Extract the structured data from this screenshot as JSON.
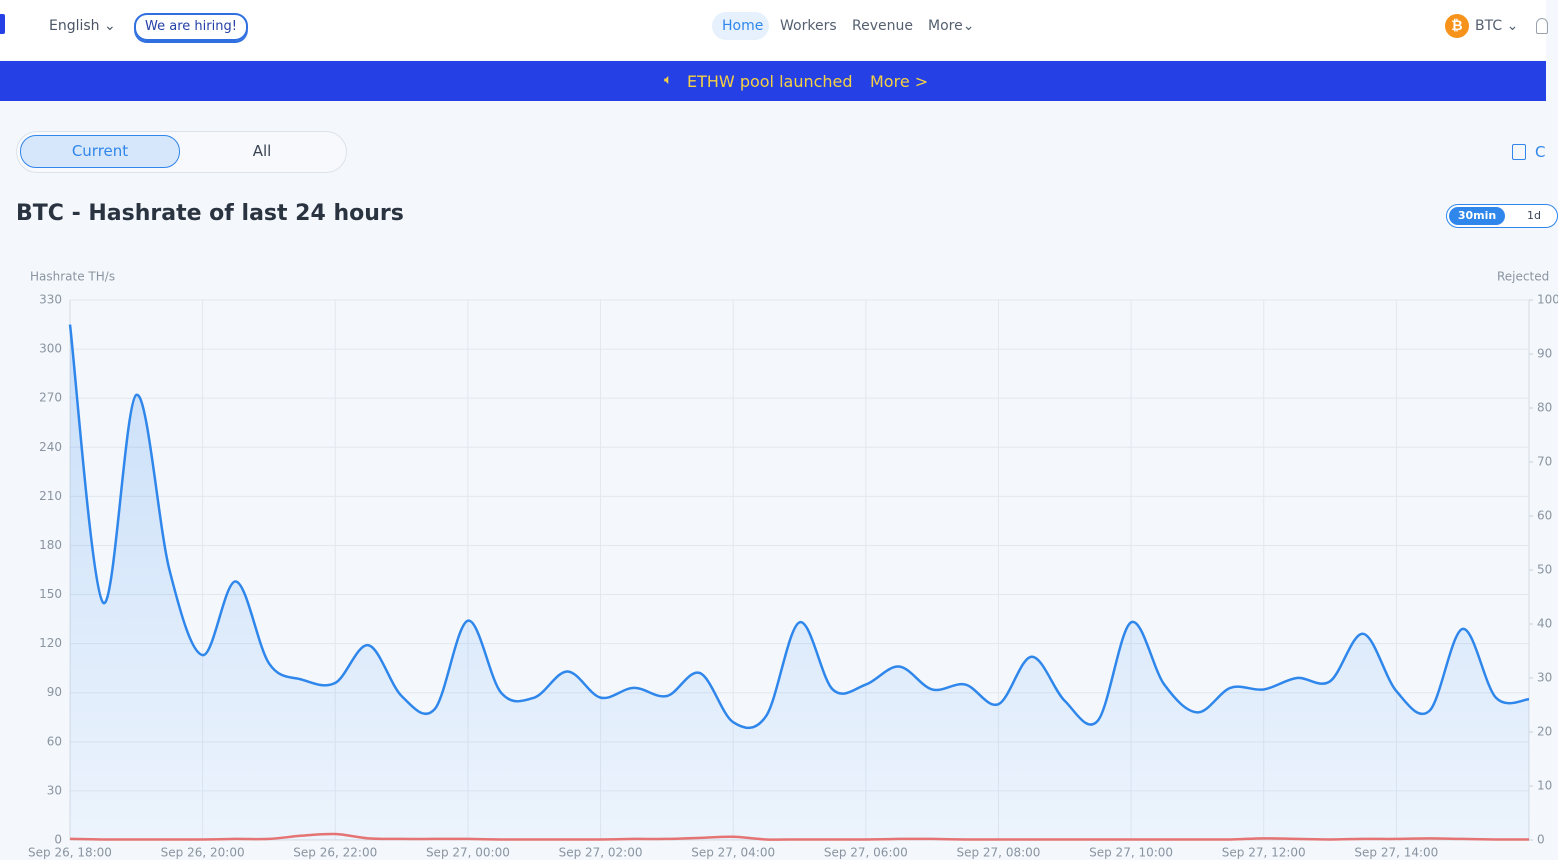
{
  "header": {
    "language": "English",
    "hiring": "We are hiring!",
    "nav": [
      "Home",
      "Workers",
      "Revenue",
      "More"
    ],
    "coin": "BTC",
    "calculator": "C"
  },
  "banner": {
    "text": "ETHW pool launched",
    "link": "More >"
  },
  "tabs": [
    "Current",
    "All"
  ],
  "interval": [
    "30min",
    "1d"
  ],
  "chart_data": {
    "type": "line",
    "title": "BTC - Hashrate of last 24 hours",
    "y_label": "Hashrate TH/s",
    "y2_label": "Rejected",
    "categories": [
      "Sep 26, 18:00",
      null,
      null,
      null,
      "Sep 26, 20:00",
      null,
      null,
      null,
      "Sep 26, 22:00",
      null,
      null,
      null,
      "Sep 27, 00:00",
      null,
      null,
      null,
      "Sep 27, 02:00",
      null,
      null,
      null,
      "Sep 27, 04:00",
      null,
      null,
      null,
      "Sep 27, 06:00",
      null,
      null,
      null,
      "Sep 27, 08:00",
      null,
      null,
      null,
      "Sep 27, 10:00",
      null,
      null,
      null,
      "Sep 27, 12:00",
      null,
      null,
      null,
      "Sep 27, 14:00",
      null,
      null,
      null,
      null
    ],
    "series": [
      {
        "color": "#2f86eb",
        "values": [
          315,
          145,
          272,
          165,
          113,
          158,
          108,
          98,
          96,
          119,
          88,
          80,
          134,
          90,
          87,
          103,
          87,
          93,
          88,
          102,
          72,
          76,
          133,
          92,
          95,
          106,
          92,
          95,
          83,
          112,
          85,
          73,
          133,
          95,
          78,
          93,
          92,
          99,
          97,
          126,
          91,
          79,
          129,
          87,
          86
        ]
      },
      {
        "color": "#e57373",
        "axis": "y2",
        "values": [
          0.2,
          0.1,
          0.1,
          0.1,
          0.1,
          0.2,
          0.2,
          0.8,
          1.1,
          0.3,
          0.2,
          0.2,
          0.2,
          0.1,
          0.1,
          0.1,
          0.1,
          0.2,
          0.2,
          0.4,
          0.6,
          0.1,
          0.1,
          0.1,
          0.1,
          0.2,
          0.2,
          0.1,
          0.1,
          0.1,
          0.1,
          0.1,
          0.1,
          0.1,
          0.1,
          0.1,
          0.3,
          0.2,
          0.1,
          0.2,
          0.2,
          0.3,
          0.2,
          0.1,
          0.1
        ]
      }
    ],
    "ylim": [
      0,
      330
    ],
    "yticks": [
      0,
      30,
      60,
      90,
      120,
      150,
      180,
      210,
      240,
      270,
      300,
      330
    ],
    "y2lim": [
      0,
      100
    ],
    "y2ticks": [
      0,
      10,
      20,
      30,
      40,
      50,
      60,
      70,
      80,
      90,
      100
    ],
    "grid": true
  }
}
